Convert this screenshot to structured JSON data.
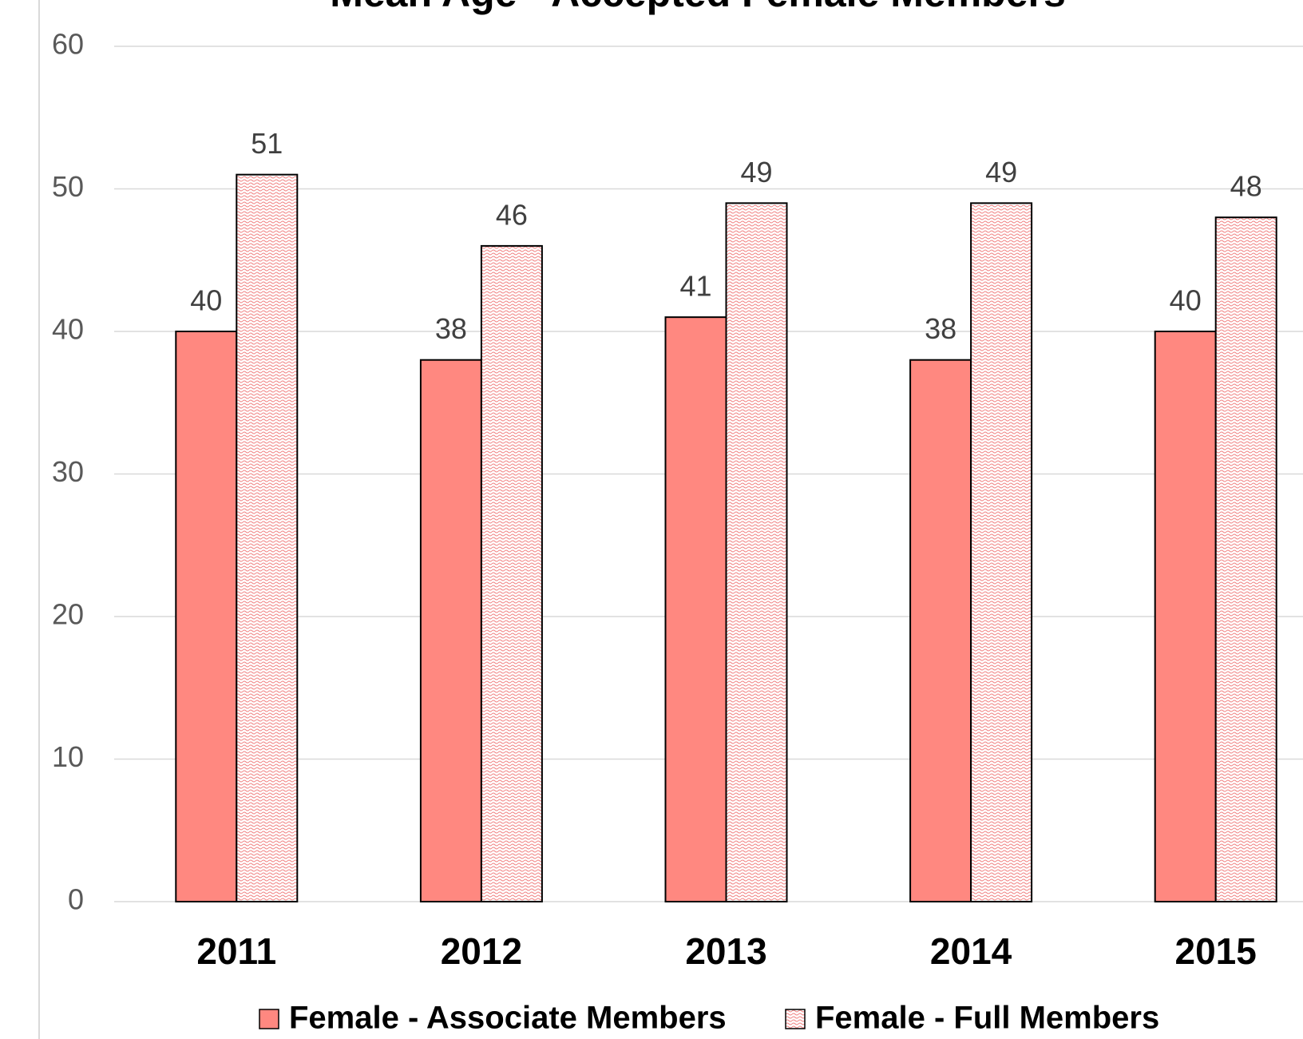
{
  "chart_data": {
    "type": "bar",
    "title": "Mean Age - Accepted Female Members",
    "categories": [
      "2011",
      "2012",
      "2013",
      "2014",
      "2015"
    ],
    "series": [
      {
        "name": "Female - Associate Members",
        "color": "#ff8880",
        "values": [
          40,
          38,
          41,
          38,
          40
        ]
      },
      {
        "name": "Female - Full Members",
        "color": "#f08080",
        "pattern": "waves",
        "values": [
          51,
          46,
          49,
          49,
          48
        ]
      }
    ],
    "ylim": [
      0,
      60
    ],
    "yticks": [
      0,
      10,
      20,
      30,
      40,
      50,
      60
    ],
    "grid": true,
    "legend": "bottom"
  }
}
